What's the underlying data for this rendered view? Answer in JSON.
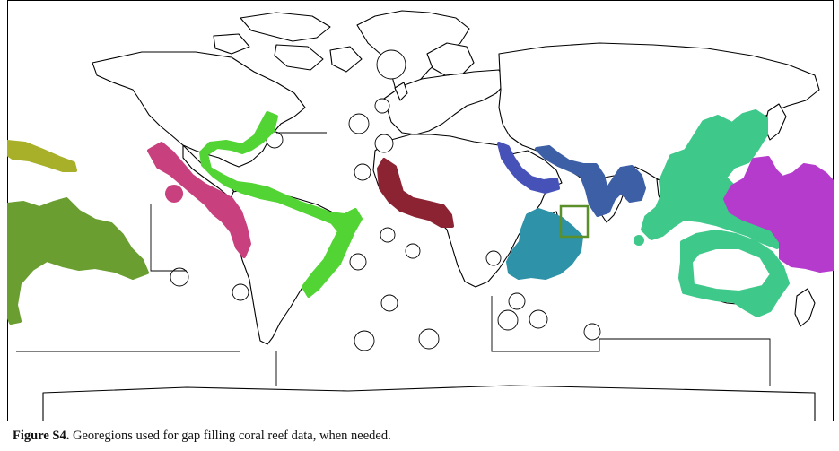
{
  "figure": {
    "label": "Figure S4.",
    "caption": " Georegions used for gap filling coral reef data, when needed."
  },
  "regions": [
    {
      "id": "hawaii",
      "color": "#a8b02a"
    },
    {
      "id": "central-pacific",
      "color": "#6a9e30"
    },
    {
      "id": "eastern-tropical-pacific",
      "color": "#c8407e"
    },
    {
      "id": "caribbean",
      "color": "#52d434"
    },
    {
      "id": "west-africa",
      "color": "#8c2332"
    },
    {
      "id": "red-sea",
      "color": "#4752b8"
    },
    {
      "id": "arabian-sea",
      "color": "#3d5fa6"
    },
    {
      "id": "east-africa",
      "color": "#2e92a8"
    },
    {
      "id": "coral-triangle-australia",
      "color": "#3ec88a"
    },
    {
      "id": "west-pacific",
      "color": "#b53bcd"
    },
    {
      "id": "highlight-box",
      "color": "#5a8f2a"
    }
  ]
}
